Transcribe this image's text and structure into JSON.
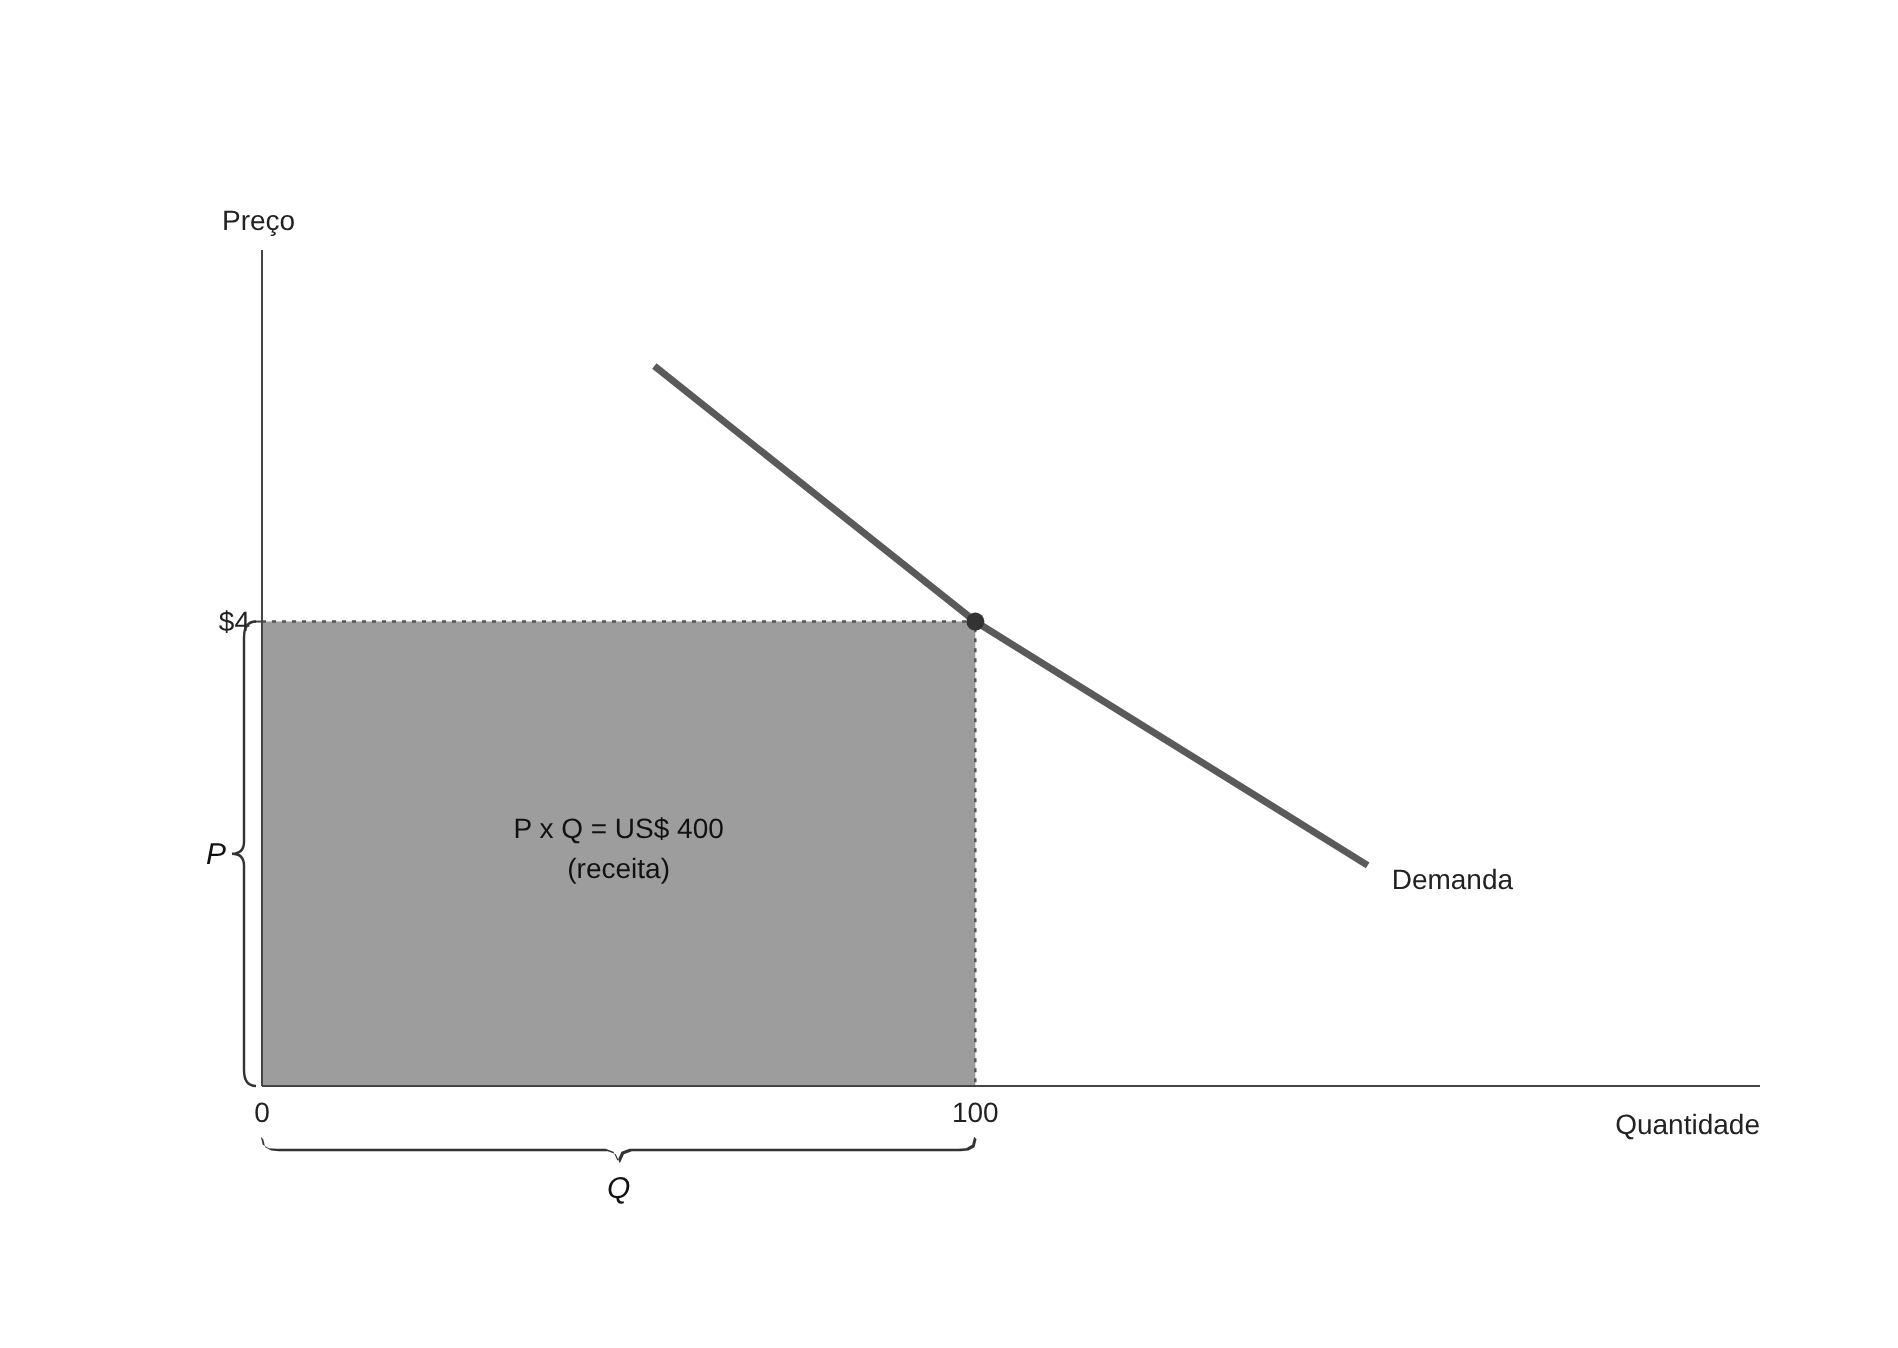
{
  "chart_data": {
    "type": "line",
    "xlabel": "Quantidade",
    "ylabel": "Preço",
    "xlim": [
      0,
      210
    ],
    "ylim": [
      0,
      7.2
    ],
    "xticks": [
      0,
      100
    ],
    "yticks": [
      {
        "value": 4,
        "label": "$4"
      }
    ],
    "grid": false,
    "legend": false,
    "series": [
      {
        "type": "area",
        "color": "#8c8c8c",
        "x": [
          0,
          100,
          100
        ],
        "values": [
          4,
          4,
          0
        ],
        "line_style": "dotted"
      },
      {
        "name": "Demanda",
        "color": "#5a5a5a",
        "x": [
          55,
          100,
          155
        ],
        "values": [
          6.2,
          4,
          1.9
        ],
        "line_style": "solid"
      },
      {
        "type": "scatter",
        "color": "#333333",
        "x": [
          100
        ],
        "values": [
          4
        ],
        "marker": "circle"
      }
    ],
    "annotations": [
      "P x Q = US$ 400",
      "(receita)",
      "P",
      "Q"
    ]
  }
}
